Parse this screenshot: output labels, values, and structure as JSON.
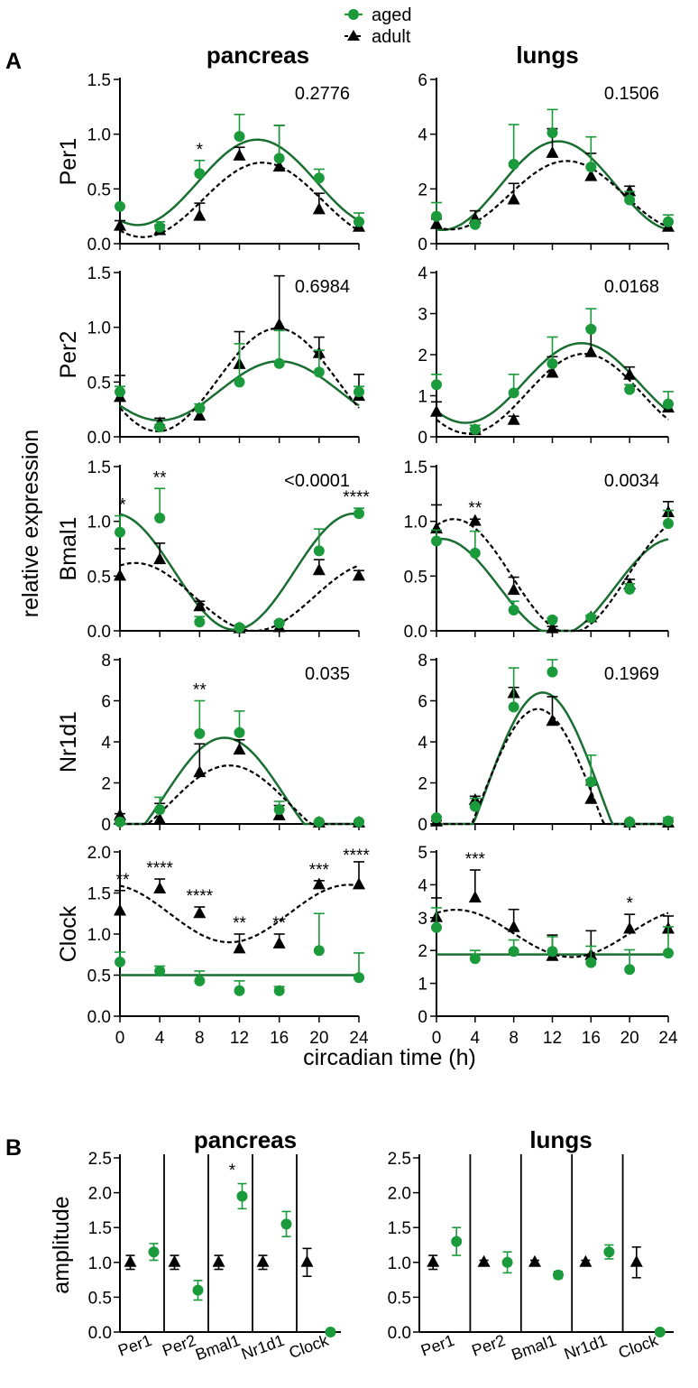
{
  "legend": {
    "aged": "aged",
    "adult": "adult",
    "aged_color": "#1a9a3a",
    "adult_color": "#000000",
    "fit_aged_color": "#1a6e32"
  },
  "panel_labels": {
    "a": "A",
    "b": "B"
  },
  "column_titles": {
    "pancreas": "pancreas",
    "lungs": "lungs"
  },
  "y_axis_label": "relative expression",
  "x_axis_label": "circadian time (h)",
  "chart_data": [
    {
      "type": "line",
      "panel": "A",
      "tissue": "pancreas",
      "gene": "Per1",
      "x": [
        0,
        4,
        8,
        12,
        16,
        20,
        24
      ],
      "ylim": [
        0,
        1.5
      ],
      "yticks": [
        "0.0",
        "0.5",
        "1.0",
        "1.5"
      ],
      "xticks": [],
      "pvalue": "0.2776",
      "series": [
        {
          "name": "aged",
          "values": [
            0.34,
            0.15,
            0.64,
            0.98,
            0.78,
            0.6,
            0.2
          ],
          "errors": [
            0,
            0.05,
            0.12,
            0.2,
            0.3,
            0.08,
            0.08
          ],
          "fit": {
            "mesor": 0.56,
            "amplitude": 0.39,
            "peak": 13.8
          }
        },
        {
          "name": "adult",
          "values": [
            0.16,
            0.12,
            0.25,
            0.8,
            0.7,
            0.31,
            0.15
          ],
          "errors": [
            0.05,
            0.05,
            0.12,
            0.08,
            0.38,
            0.15,
            0.05
          ],
          "fit": {
            "mesor": 0.4,
            "amplitude": 0.34,
            "peak": 14.3
          }
        }
      ],
      "stars": [
        {
          "x": 8,
          "label": "*"
        }
      ]
    },
    {
      "type": "line",
      "panel": "A",
      "tissue": "lungs",
      "gene": "Per1",
      "x": [
        0,
        4,
        8,
        12,
        16,
        20,
        24
      ],
      "ylim": [
        0,
        6
      ],
      "yticks": [
        "0",
        "2",
        "4",
        "6"
      ],
      "xticks": [],
      "pvalue": "0.1506",
      "series": [
        {
          "name": "aged",
          "values": [
            1.0,
            0.7,
            2.9,
            4.05,
            2.8,
            1.6,
            0.8
          ],
          "errors": [
            0.5,
            0.15,
            1.45,
            0.85,
            1.1,
            0.3,
            0.25
          ],
          "fit": {
            "mesor": 2.12,
            "amplitude": 1.62,
            "peak": 12.6
          }
        },
        {
          "name": "adult",
          "values": [
            0.7,
            0.9,
            1.6,
            3.3,
            2.45,
            1.9,
            0.6
          ],
          "errors": [
            0.2,
            0.3,
            0.6,
            0.9,
            0.85,
            0.2,
            0.2
          ],
          "fit": {
            "mesor": 1.77,
            "amplitude": 1.25,
            "peak": 13.5
          }
        }
      ],
      "stars": []
    },
    {
      "type": "line",
      "panel": "A",
      "tissue": "pancreas",
      "gene": "Per2",
      "x": [
        0,
        4,
        8,
        12,
        16,
        20,
        24
      ],
      "ylim": [
        0,
        1.5
      ],
      "yticks": [
        "0.0",
        "0.5",
        "1.0",
        "1.5"
      ],
      "xticks": [],
      "pvalue": "0.6984",
      "series": [
        {
          "name": "aged",
          "values": [
            0.41,
            0.09,
            0.26,
            0.5,
            0.67,
            0.59,
            0.41
          ],
          "errors": [
            0.05,
            0.02,
            0.04,
            0.35,
            0.3,
            0.2,
            0.05
          ],
          "fit": {
            "mesor": 0.42,
            "amplitude": 0.27,
            "peak": 16.0
          }
        },
        {
          "name": "adult",
          "values": [
            0.36,
            0.12,
            0.19,
            0.66,
            1.02,
            0.76,
            0.37
          ],
          "errors": [
            0.2,
            0.05,
            0.08,
            0.3,
            0.45,
            0.15,
            0.2
          ],
          "fit": {
            "mesor": 0.52,
            "amplitude": 0.47,
            "peak": 15.8
          }
        }
      ],
      "stars": []
    },
    {
      "type": "line",
      "panel": "A",
      "tissue": "lungs",
      "gene": "Per2",
      "x": [
        0,
        4,
        8,
        12,
        16,
        20,
        24
      ],
      "ylim": [
        0,
        4
      ],
      "yticks": [
        "0",
        "1",
        "2",
        "3",
        "4"
      ],
      "xticks": [],
      "pvalue": "0.0168",
      "series": [
        {
          "name": "aged",
          "values": [
            1.27,
            0.18,
            1.07,
            1.78,
            2.62,
            1.15,
            0.8
          ],
          "errors": [
            0.25,
            0.1,
            0.45,
            0.65,
            0.5,
            0.12,
            0.3
          ],
          "fit": {
            "mesor": 1.31,
            "amplitude": 0.97,
            "peak": 15.0
          }
        },
        {
          "name": "adult",
          "values": [
            0.6,
            0.15,
            0.4,
            1.55,
            2.05,
            1.5,
            0.7
          ],
          "errors": [
            0.25,
            0.05,
            0.1,
            0.4,
            0.6,
            0.2,
            0.1
          ],
          "fit": {
            "mesor": 1.05,
            "amplitude": 0.97,
            "peak": 15.3
          }
        }
      ],
      "stars": []
    },
    {
      "type": "line",
      "panel": "A",
      "tissue": "pancreas",
      "gene": "Bmal1",
      "x": [
        0,
        4,
        8,
        12,
        16,
        20,
        24
      ],
      "ylim": [
        0,
        1.5
      ],
      "yticks": [
        "0.0",
        "0.5",
        "1.0",
        "1.5"
      ],
      "xticks": [],
      "pvalue": "<0.0001",
      "series": [
        {
          "name": "aged",
          "values": [
            0.9,
            1.03,
            0.08,
            0.03,
            0.07,
            0.73,
            1.07
          ],
          "errors": [
            0.15,
            0.27,
            0.05,
            0.02,
            0.02,
            0.2,
            0.05
          ],
          "fit": {
            "mesor": 0.54,
            "amplitude": 0.53,
            "peak": 23.5
          }
        },
        {
          "name": "adult",
          "values": [
            0.5,
            0.65,
            0.22,
            0.02,
            0.03,
            0.55,
            0.5
          ],
          "errors": [
            0.25,
            0.15,
            0.05,
            0.02,
            0.05,
            0.1,
            0.05
          ],
          "fit": {
            "mesor": 0.31,
            "amplitude": 0.31,
            "peak": 1.5
          }
        }
      ],
      "stars": [
        {
          "x": 0,
          "label": "*"
        },
        {
          "x": 4,
          "label": "**"
        },
        {
          "x": 24,
          "label": "****"
        }
      ]
    },
    {
      "type": "line",
      "panel": "A",
      "tissue": "lungs",
      "gene": "Bmal1",
      "x": [
        0,
        4,
        8,
        12,
        16,
        20,
        24
      ],
      "ylim": [
        0,
        1.5
      ],
      "yticks": [
        "0.0",
        "0.5",
        "1.0",
        "1.5"
      ],
      "xticks": [],
      "pvalue": "0.0034",
      "series": [
        {
          "name": "aged",
          "values": [
            0.82,
            0.71,
            0.19,
            0.1,
            0.12,
            0.38,
            0.98
          ],
          "errors": [
            0.1,
            0.2,
            0.08,
            0.02,
            0.02,
            0.05,
            0.12
          ],
          "fit": {
            "mesor": 0.4,
            "amplitude": 0.44,
            "peak": 0.5
          }
        },
        {
          "name": "adult",
          "values": [
            0.93,
            1.0,
            0.37,
            0.02,
            0.12,
            0.42,
            1.08
          ],
          "errors": [
            0.22,
            0.02,
            0.12,
            0.02,
            0.02,
            0.05,
            0.1
          ],
          "fit": {
            "mesor": 0.5,
            "amplitude": 0.52,
            "peak": 1.8
          }
        }
      ],
      "stars": [
        {
          "x": 4,
          "label": "**"
        }
      ]
    },
    {
      "type": "line",
      "panel": "A",
      "tissue": "pancreas",
      "gene": "Nr1d1",
      "x": [
        0,
        4,
        8,
        12,
        16,
        20,
        24
      ],
      "ylim": [
        0,
        8
      ],
      "yticks": [
        "0",
        "2",
        "4",
        "6",
        "8"
      ],
      "xticks": [],
      "pvalue": "0.035",
      "series": [
        {
          "name": "aged",
          "values": [
            0.1,
            0.7,
            4.4,
            4.45,
            0.7,
            0.1,
            0.1
          ],
          "errors": [
            0.05,
            0.6,
            1.6,
            1.05,
            0.4,
            0.05,
            0.05
          ],
          "fit": {
            "mesor": 1.4,
            "amplitude": 2.8,
            "peak": 10.5,
            "floor": 0
          }
        },
        {
          "name": "adult",
          "values": [
            0.4,
            0.2,
            2.5,
            3.6,
            0.4,
            0.05,
            0.05
          ],
          "errors": [
            0.1,
            0.8,
            1.4,
            0.5,
            0.5,
            0.05,
            0.05
          ],
          "fit": {
            "mesor": 1.0,
            "amplitude": 1.85,
            "peak": 11.0,
            "floor": 0
          }
        }
      ],
      "stars": [
        {
          "x": 8,
          "label": "**"
        }
      ]
    },
    {
      "type": "line",
      "panel": "A",
      "tissue": "lungs",
      "gene": "Nr1d1",
      "x": [
        0,
        4,
        8,
        12,
        16,
        20,
        24
      ],
      "ylim": [
        0,
        8
      ],
      "yticks": [
        "0",
        "2",
        "4",
        "6",
        "8"
      ],
      "xticks": [],
      "pvalue": "0.1969",
      "series": [
        {
          "name": "aged",
          "values": [
            0.3,
            0.85,
            5.7,
            7.4,
            2.05,
            0.1,
            0.15
          ],
          "errors": [
            0.05,
            0.4,
            1.9,
            1.0,
            1.3,
            0.05,
            0.15
          ],
          "fit": {
            "mesor": 1.5,
            "amplitude": 4.9,
            "peak": 11.0,
            "floor": 0
          }
        },
        {
          "name": "adult",
          "values": [
            0.1,
            1.15,
            6.35,
            5.0,
            1.2,
            0.05,
            0.05
          ],
          "errors": [
            0.05,
            0.2,
            0.3,
            1.2,
            0.7,
            0.05,
            0.05
          ],
          "fit": {
            "mesor": 1.0,
            "amplitude": 4.6,
            "peak": 10.5,
            "floor": 0
          }
        }
      ],
      "stars": []
    },
    {
      "type": "line",
      "panel": "A",
      "tissue": "pancreas",
      "gene": "Clock",
      "x": [
        0,
        4,
        8,
        12,
        16,
        20,
        24
      ],
      "ylim": [
        0,
        2
      ],
      "yticks": [
        "0.0",
        "0.5",
        "1.0",
        "1.5",
        "2.0"
      ],
      "xticks": [
        "0",
        "4",
        "8",
        "12",
        "16",
        "20",
        "24"
      ],
      "pvalue": "",
      "series": [
        {
          "name": "aged",
          "values": [
            0.66,
            0.55,
            0.43,
            0.31,
            0.31,
            0.8,
            0.47
          ],
          "errors": [
            0.12,
            0.06,
            0.12,
            0.12,
            0.05,
            0.45,
            0.3
          ],
          "fit": {
            "mesor": 0.5,
            "amplitude": 0,
            "peak": 0
          }
        },
        {
          "name": "adult",
          "values": [
            1.28,
            1.55,
            1.25,
            0.82,
            0.88,
            1.6,
            1.6
          ],
          "errors": [
            0.25,
            0.12,
            0.08,
            0.18,
            0.12,
            0.05,
            0.28
          ],
          "fit": {
            "mesor": 1.25,
            "amplitude": 0.35,
            "peak": 23.0
          }
        }
      ],
      "stars": [
        {
          "x": 0,
          "label": "**"
        },
        {
          "x": 4,
          "label": "****"
        },
        {
          "x": 8,
          "label": "****"
        },
        {
          "x": 12,
          "label": "**"
        },
        {
          "x": 16,
          "label": "**"
        },
        {
          "x": 20,
          "label": "***"
        },
        {
          "x": 24,
          "label": "****"
        }
      ]
    },
    {
      "type": "line",
      "panel": "A",
      "tissue": "lungs",
      "gene": "Clock",
      "x": [
        0,
        4,
        8,
        12,
        16,
        20,
        24
      ],
      "ylim": [
        0,
        5
      ],
      "yticks": [
        "0",
        "1",
        "2",
        "3",
        "4",
        "5"
      ],
      "xticks": [
        "0",
        "4",
        "8",
        "12",
        "16",
        "20",
        "24"
      ],
      "pvalue": "",
      "series": [
        {
          "name": "aged",
          "values": [
            2.7,
            1.75,
            1.97,
            1.97,
            1.63,
            1.42,
            1.92
          ],
          "errors": [
            0.6,
            0.25,
            0.35,
            0.45,
            0.5,
            0.6,
            0.8
          ],
          "fit": {
            "mesor": 1.88,
            "amplitude": 0,
            "peak": 0
          }
        },
        {
          "name": "adult",
          "values": [
            3.0,
            3.6,
            2.7,
            1.82,
            1.85,
            2.65,
            2.65
          ],
          "errors": [
            0.6,
            0.85,
            0.55,
            0.65,
            0.75,
            0.45,
            0.4
          ],
          "fit": {
            "mesor": 2.52,
            "amplitude": 0.72,
            "peak": 2.0
          }
        }
      ],
      "stars": [
        {
          "x": 4,
          "label": "***"
        },
        {
          "x": 20,
          "label": "*"
        }
      ]
    },
    {
      "type": "scatter",
      "panel": "B",
      "tissue": "pancreas",
      "ylabel": "amplitude",
      "categories": [
        "Per1",
        "Per2",
        "Bmal1",
        "Nr1d1",
        "Clock"
      ],
      "ylim": [
        0,
        2.5
      ],
      "yticks": [
        "0.0",
        "0.5",
        "1.0",
        "1.5",
        "2.0",
        "2.5"
      ],
      "series": [
        {
          "name": "adult",
          "values": [
            1.0,
            1.0,
            1.0,
            1.0,
            1.0
          ],
          "errors": [
            0.1,
            0.1,
            0.1,
            0.1,
            0.2
          ]
        },
        {
          "name": "aged",
          "values": [
            1.15,
            0.6,
            1.95,
            1.55,
            0.0
          ],
          "errors": [
            0.12,
            0.14,
            0.18,
            0.18,
            0
          ]
        }
      ],
      "stars": [
        {
          "category": "Bmal1",
          "label": "*"
        }
      ]
    },
    {
      "type": "scatter",
      "panel": "B",
      "tissue": "lungs",
      "ylabel": "",
      "categories": [
        "Per1",
        "Per2",
        "Bmal1",
        "Nr1d1",
        "Clock"
      ],
      "ylim": [
        0,
        2.5
      ],
      "yticks": [
        "0.0",
        "0.5",
        "1.0",
        "1.5",
        "2.0",
        "2.5"
      ],
      "series": [
        {
          "name": "adult",
          "values": [
            1.0,
            1.0,
            1.0,
            1.0,
            1.0
          ],
          "errors": [
            0.1,
            0.03,
            0.03,
            0.03,
            0.22
          ]
        },
        {
          "name": "aged",
          "values": [
            1.3,
            1.0,
            0.82,
            1.15,
            0.0
          ],
          "errors": [
            0.2,
            0.15,
            0.05,
            0.1,
            0
          ]
        }
      ],
      "stars": []
    }
  ]
}
